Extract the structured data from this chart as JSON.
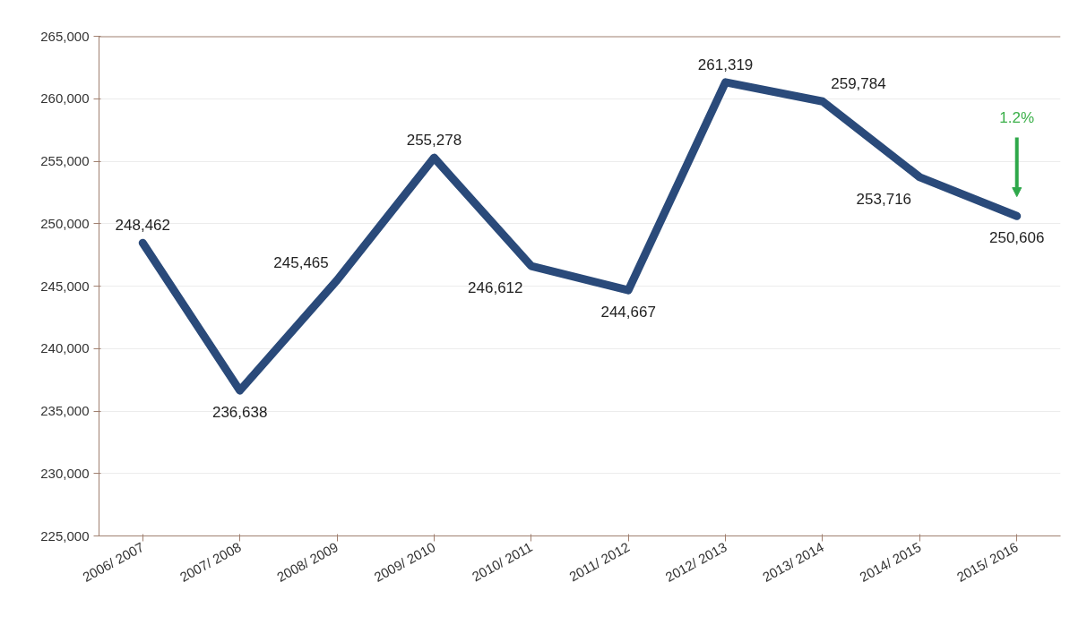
{
  "chart_data": {
    "type": "line",
    "categories": [
      "2006/ 2007",
      "2007/ 2008",
      "2008/ 2009",
      "2009/ 2010",
      "2010/ 2011",
      "2011/ 2012",
      "2012/ 2013",
      "2013/ 2014",
      "2014/ 2015",
      "2015/ 2016"
    ],
    "series": [
      {
        "color": "#2a4a7a",
        "values": [
          248462,
          236638,
          245465,
          255278,
          246612,
          244667,
          261319,
          259784,
          253716,
          250606
        ]
      }
    ],
    "value_labels": [
      "248,462",
      "236,638",
      "245,465",
      "255,278",
      "246,612",
      "244,667",
      "261,319",
      "259,784",
      "253,716",
      "250,606"
    ],
    "ylim": [
      225000,
      265000
    ],
    "yticks": [
      {
        "value": 225000,
        "label": "225,000"
      },
      {
        "value": 230000,
        "label": "230,000"
      },
      {
        "value": 235000,
        "label": "235,000"
      },
      {
        "value": 240000,
        "label": "240,000"
      },
      {
        "value": 245000,
        "label": "245,000"
      },
      {
        "value": 250000,
        "label": "250,000"
      },
      {
        "value": 255000,
        "label": "255,000"
      },
      {
        "value": 260000,
        "label": "260,000"
      },
      {
        "value": 265000,
        "label": "265,000"
      }
    ],
    "annotations": [
      "1.2%"
    ],
    "grid": "y",
    "marker": "none",
    "line_style": "solid"
  }
}
